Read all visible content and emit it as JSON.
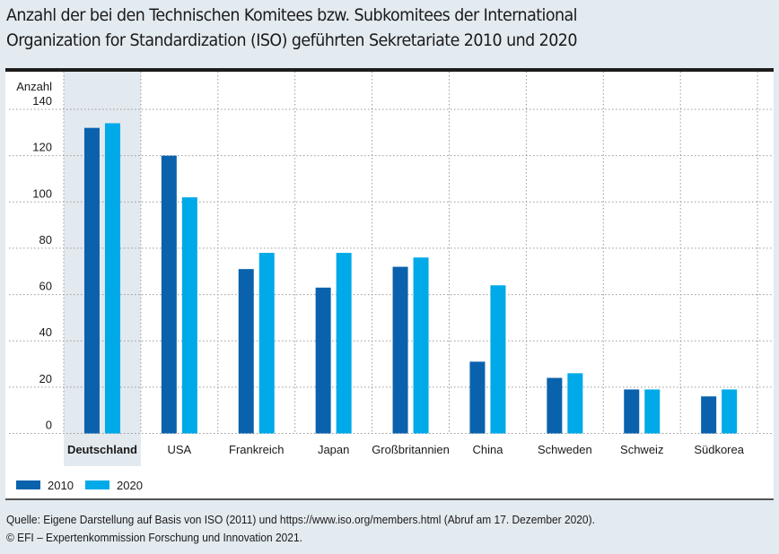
{
  "title_line1": "Anzahl der bei den Technischen Komitees bzw. Subkomitees der International",
  "title_line2": "Organization for Standardization (ISO) geführten Sekretariate 2010 und 2020",
  "footer": {
    "source": "Quelle: Eigene Darstellung auf Basis von ISO (2011) und https://www.iso.org/members.html (Abruf am 17. Dezember 2020).",
    "copyright": "© EFI – Expertenkommission Forschung und Innovation 2021."
  },
  "colors": {
    "series_2010": "#0a62ad",
    "series_2020": "#00a9e8",
    "highlight": "#e2e9ef",
    "background": "#e3eaf0"
  },
  "chart_data": {
    "type": "bar",
    "title": "Anzahl der bei den Technischen Komitees bzw. Subkomitees der International Organization for Standardization (ISO) geführten Sekretariate 2010 und 2020",
    "xlabel": "",
    "ylabel": "Anzahl",
    "ylim": [
      0,
      140
    ],
    "yticks": [
      0,
      20,
      40,
      60,
      80,
      100,
      120,
      140
    ],
    "grid": true,
    "legend_position": "bottom-left",
    "highlighted_category": "Deutschland",
    "categories": [
      "Deutschland",
      "USA",
      "Frankreich",
      "Japan",
      "Großbritannien",
      "China",
      "Schweden",
      "Schweiz",
      "Südkorea"
    ],
    "series": [
      {
        "name": "2010",
        "values": [
          132,
          120,
          71,
          63,
          72,
          31,
          24,
          19,
          16
        ]
      },
      {
        "name": "2020",
        "values": [
          134,
          102,
          78,
          78,
          76,
          64,
          26,
          19,
          19
        ]
      }
    ]
  }
}
